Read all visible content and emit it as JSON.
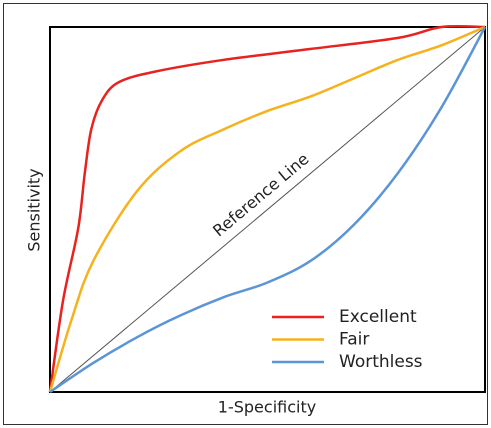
{
  "chart_data": {
    "type": "line",
    "xlabel": "1-Specificity",
    "ylabel": "Sensitivity",
    "xlim": [
      0,
      1
    ],
    "ylim": [
      0,
      1
    ],
    "legend": "lower right",
    "reference_line": {
      "label": "Reference Line",
      "color": "#555555",
      "x": [
        0,
        1
      ],
      "values": [
        0,
        1
      ]
    },
    "series": [
      {
        "name": "Excellent",
        "color": "#e8221e",
        "x": [
          0,
          0.03,
          0.065,
          0.08,
          0.095,
          0.12,
          0.16,
          0.25,
          0.4,
          0.6,
          0.8,
          0.9,
          1
        ],
        "values": [
          0,
          0.25,
          0.45,
          0.6,
          0.72,
          0.8,
          0.85,
          0.88,
          0.91,
          0.94,
          0.97,
          1,
          1
        ]
      },
      {
        "name": "Fair",
        "color": "#f5b21c",
        "x": [
          0,
          0.05,
          0.1,
          0.2,
          0.3,
          0.4,
          0.5,
          0.6,
          0.7,
          0.8,
          0.9,
          1
        ],
        "values": [
          0,
          0.2,
          0.36,
          0.55,
          0.66,
          0.72,
          0.77,
          0.81,
          0.86,
          0.91,
          0.95,
          1
        ]
      },
      {
        "name": "Worthless",
        "color": "#5b95d6",
        "x": [
          0,
          0.1,
          0.2,
          0.3,
          0.4,
          0.5,
          0.6,
          0.7,
          0.8,
          0.9,
          1
        ],
        "values": [
          0,
          0.08,
          0.15,
          0.21,
          0.26,
          0.3,
          0.36,
          0.46,
          0.6,
          0.78,
          1
        ]
      }
    ]
  }
}
